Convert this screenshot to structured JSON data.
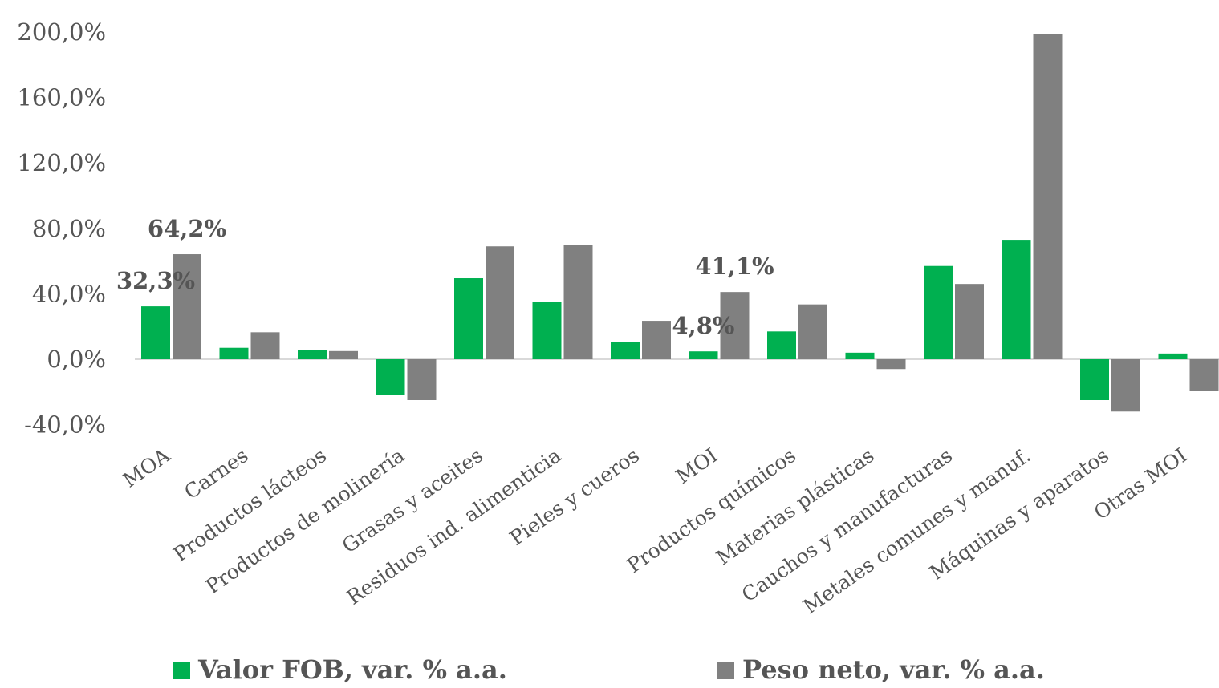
{
  "chart_data": {
    "type": "bar",
    "categories": [
      "MOA",
      "Carnes",
      "Productos lácteos",
      "Productos de molinería",
      "Grasas y aceites",
      "Residuos ind. alimenticia",
      "Pieles y cueros",
      "MOI",
      "Productos químicos",
      "Materias plásticas",
      "Cauchos y manufacturas",
      "Metales comunes y manuf.",
      "Máquinas y aparatos",
      "Otras MOI"
    ],
    "series": [
      {
        "name": "Valor FOB, var. % a.a.",
        "color": "#00b050",
        "values": [
          32.3,
          7,
          5.5,
          -22,
          49.5,
          35,
          10.5,
          4.8,
          17,
          4,
          57,
          73,
          -25,
          3.5
        ]
      },
      {
        "name": "Peso neto, var. % a.a.",
        "color": "#808080",
        "values": [
          64.2,
          16.5,
          5,
          -25,
          69,
          70,
          23.5,
          41.1,
          33.5,
          -6,
          46,
          199,
          -32,
          -19.5
        ]
      }
    ],
    "data_labels": [
      {
        "series": 0,
        "category": 0,
        "text": "32,3%"
      },
      {
        "series": 1,
        "category": 0,
        "text": "64,2%"
      },
      {
        "series": 0,
        "category": 7,
        "text": "4,8%"
      },
      {
        "series": 1,
        "category": 7,
        "text": "41,1%"
      }
    ],
    "y_ticks": [
      "200,0%",
      "160,0%",
      "120,0%",
      "80,0%",
      "40,0%",
      "0,0%",
      "-40,0%"
    ],
    "ylim": [
      -40,
      200
    ],
    "title": "",
    "xlabel": "",
    "ylabel": "",
    "grid": false,
    "legend": "bottom"
  }
}
